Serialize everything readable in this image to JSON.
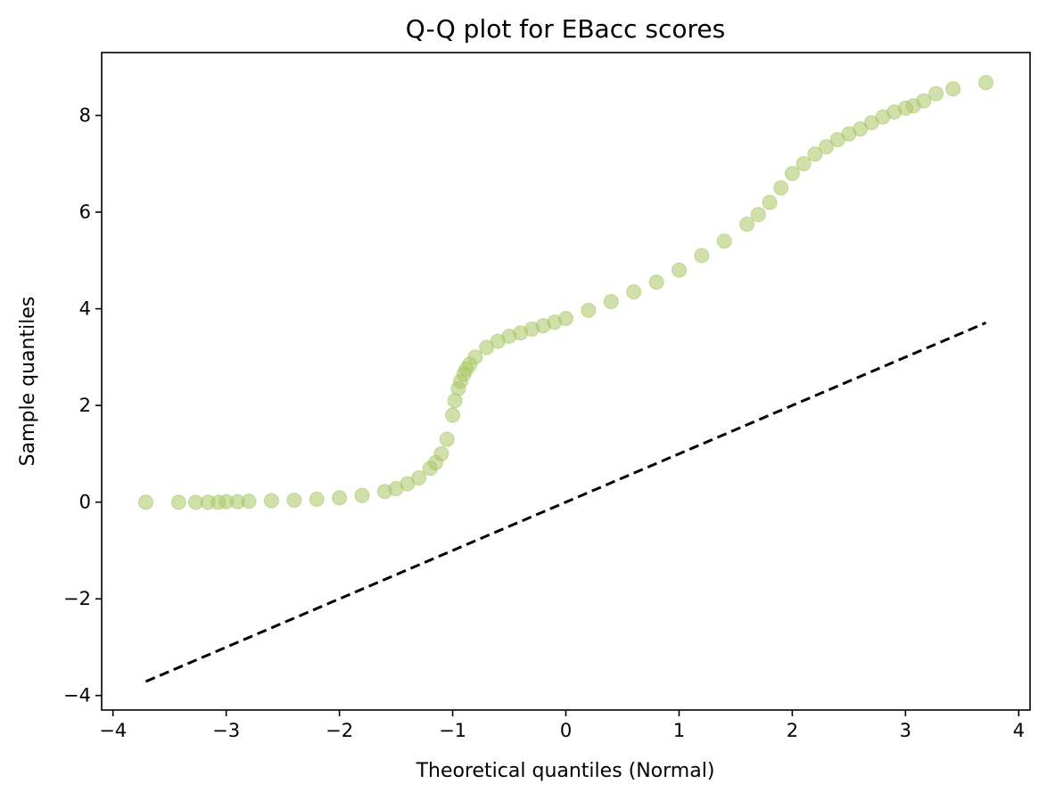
{
  "chart_data": {
    "type": "scatter",
    "title": "Q-Q plot for EBacc scores",
    "xlabel": "Theoretical quantiles (Normal)",
    "ylabel": "Sample quantiles",
    "xlim": [
      -4.1,
      4.1
    ],
    "ylim": [
      -4.3,
      9.3
    ],
    "xticks": [
      -4,
      -3,
      -2,
      -1,
      0,
      1,
      2,
      3,
      4
    ],
    "yticks": [
      -4,
      -2,
      0,
      2,
      4,
      6,
      8
    ],
    "xtick_labels": [
      "−4",
      "−3",
      "−2",
      "−1",
      "0",
      "1",
      "2",
      "3",
      "4"
    ],
    "ytick_labels": [
      "−4",
      "−2",
      "0",
      "2",
      "4",
      "6",
      "8"
    ],
    "grid": false,
    "colors": {
      "points": "#a9c764",
      "reference_line": "#000000"
    },
    "series": [
      {
        "kind": "points",
        "x": [
          -3.71,
          -3.42,
          -3.27,
          -3.16,
          -3.07,
          -3.0,
          -2.9,
          -2.8,
          -2.6,
          -2.4,
          -2.2,
          -2.0,
          -1.8,
          -1.6,
          -1.5,
          -1.4,
          -1.3,
          -1.2,
          -1.15,
          -1.1,
          -1.05,
          -1.0,
          -0.98,
          -0.95,
          -0.93,
          -0.9,
          -0.88,
          -0.85,
          -0.8,
          -0.7,
          -0.6,
          -0.5,
          -0.4,
          -0.3,
          -0.2,
          -0.1,
          0.0,
          0.2,
          0.4,
          0.6,
          0.8,
          1.0,
          1.2,
          1.4,
          1.6,
          1.7,
          1.8,
          1.9,
          2.0,
          2.1,
          2.2,
          2.3,
          2.4,
          2.5,
          2.6,
          2.7,
          2.8,
          2.9,
          3.0,
          3.07,
          3.16,
          3.27,
          3.42,
          3.71
        ],
        "y": [
          0.0,
          0.0,
          0.0,
          0.0,
          0.0,
          0.01,
          0.01,
          0.02,
          0.03,
          0.04,
          0.06,
          0.09,
          0.14,
          0.22,
          0.28,
          0.38,
          0.5,
          0.7,
          0.82,
          1.0,
          1.3,
          1.8,
          2.1,
          2.35,
          2.5,
          2.65,
          2.75,
          2.85,
          3.0,
          3.2,
          3.33,
          3.43,
          3.5,
          3.58,
          3.65,
          3.72,
          3.8,
          3.97,
          4.15,
          4.35,
          4.55,
          4.8,
          5.1,
          5.4,
          5.75,
          5.95,
          6.2,
          6.5,
          6.8,
          7.0,
          7.2,
          7.35,
          7.5,
          7.62,
          7.72,
          7.85,
          7.97,
          8.07,
          8.15,
          8.2,
          8.3,
          8.45,
          8.55,
          8.68
        ]
      },
      {
        "kind": "line",
        "style": "dashed",
        "x": [
          -3.71,
          3.71
        ],
        "y": [
          -3.71,
          3.71
        ]
      }
    ]
  }
}
